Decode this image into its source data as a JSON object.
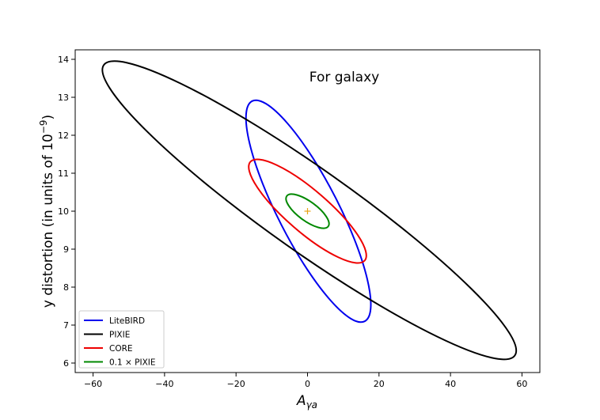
{
  "chart_data": {
    "type": "ellipse-contour",
    "title": "For galaxy",
    "xlabel_main": "A",
    "xlabel_sub": "γa",
    "ylabel_main": "y distortion (in units of 10",
    "ylabel_exp": "−9",
    "ylabel_close": ")",
    "xlim": [
      -65,
      65
    ],
    "ylim": [
      5.75,
      14.25
    ],
    "x_ticks": [
      -60,
      -40,
      -20,
      0,
      20,
      40,
      60
    ],
    "y_ticks": [
      6,
      7,
      8,
      9,
      10,
      11,
      12,
      13,
      14
    ],
    "x_tick_labels": [
      "−60",
      "−40",
      "−20",
      "0",
      "20",
      "40",
      "60"
    ],
    "y_tick_labels": [
      "6",
      "7",
      "8",
      "9",
      "10",
      "11",
      "12",
      "13",
      "14"
    ],
    "center": {
      "x": 0,
      "y": 10,
      "color": "#e8a317"
    },
    "legend_position": "lower-left",
    "series": [
      {
        "name": "LiteBIRD",
        "color": "#0000ee",
        "endpoints": [
          [
            -15.5,
            12.9
          ],
          [
            16.0,
            7.1
          ]
        ],
        "half_width": [
          1.0,
          0.35
        ]
      },
      {
        "name": "PIXIE",
        "color": "#000000",
        "endpoints": [
          [
            -57.0,
            13.85
          ],
          [
            58.0,
            6.2
          ]
        ],
        "half_width": [
          4.2,
          0.3
        ]
      },
      {
        "name": "CORE",
        "color": "#ee0000",
        "endpoints": [
          [
            -16.0,
            11.3
          ],
          [
            16.0,
            8.7
          ]
        ],
        "half_width": [
          1.6,
          0.2
        ]
      },
      {
        "name": "0.1 × PIXIE",
        "color": "#008800",
        "endpoints": [
          [
            -5.8,
            10.4
          ],
          [
            5.8,
            9.6
          ]
        ],
        "half_width": [
          0.6,
          0.1
        ]
      }
    ]
  }
}
